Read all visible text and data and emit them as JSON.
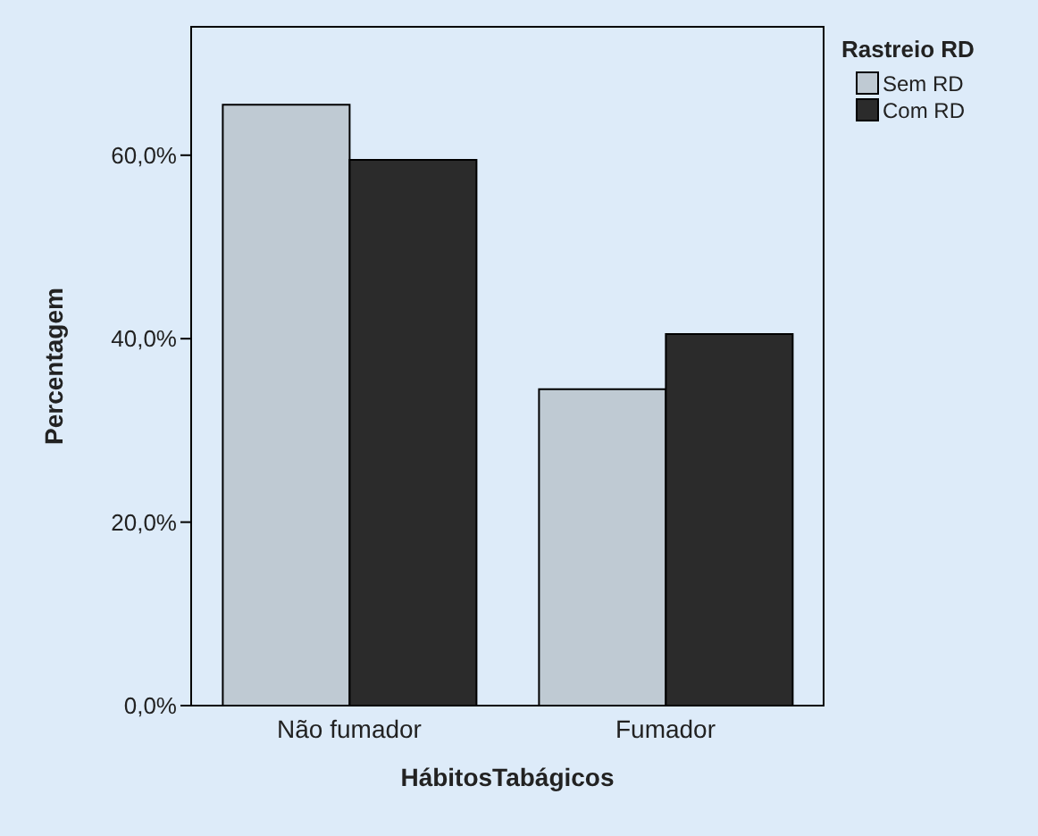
{
  "chart_data": {
    "type": "bar",
    "xlabel": "HábitosTabágicos",
    "ylabel": "Percentagem",
    "legend_title": "Rastreio RD",
    "legend": "right",
    "grid": false,
    "categories": [
      "Não fumador",
      "Fumador"
    ],
    "series": [
      {
        "name": "Sem RD",
        "color": "#bfcad3",
        "values": [
          65.5,
          34.5
        ]
      },
      {
        "name": "Com RD",
        "color": "#2b2b2b",
        "values": [
          59.5,
          40.5
        ]
      }
    ],
    "ylim": [
      0,
      74
    ],
    "yticks": [
      {
        "value": 0,
        "label": "0,0%"
      },
      {
        "value": 20,
        "label": "20,0%"
      },
      {
        "value": 40,
        "label": "40,0%"
      },
      {
        "value": 60,
        "label": "60,0%"
      }
    ]
  }
}
